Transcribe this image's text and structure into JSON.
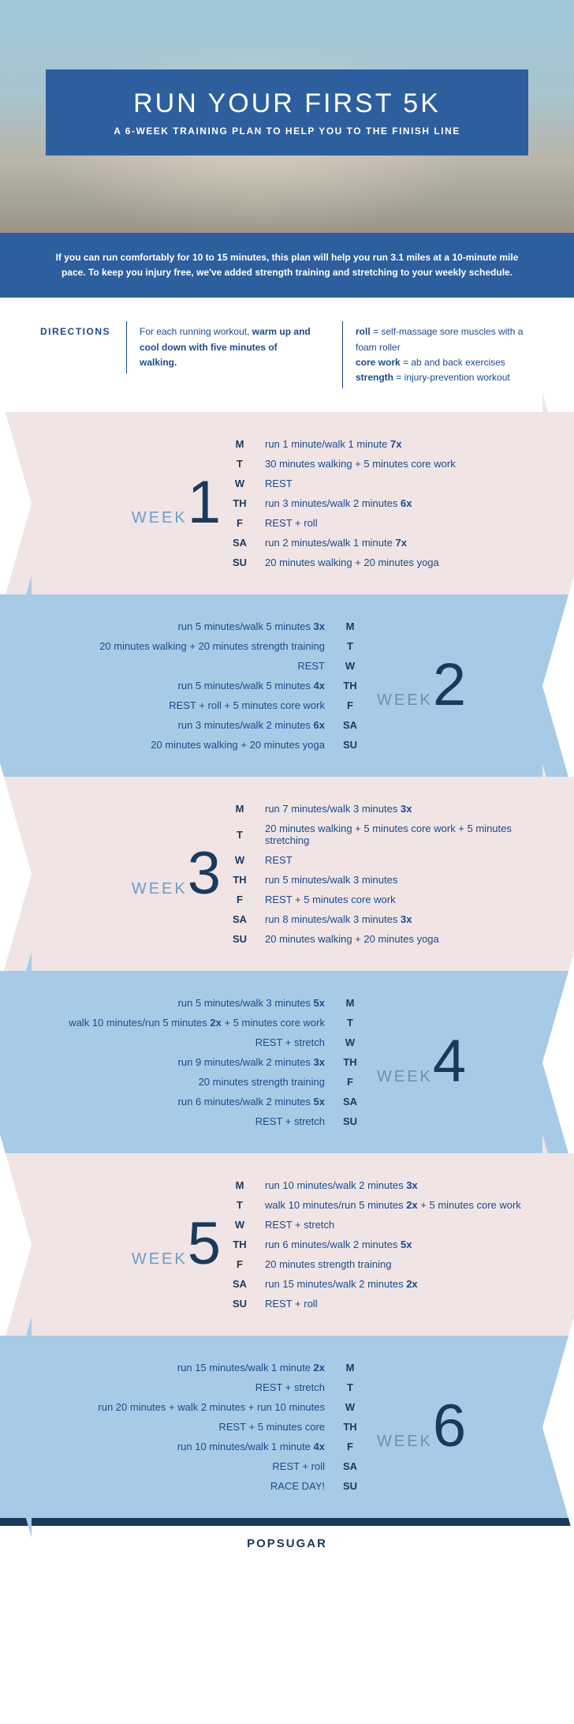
{
  "hero": {
    "title": "RUN YOUR FIRST 5K",
    "subtitle": "A 6-WEEK TRAINING PLAN TO HELP YOU TO THE FINISH LINE"
  },
  "intro": "If you can run comfortably for 10 to 15 minutes, this plan will help you run 3.1 miles at a 10-minute mile pace. To keep you injury free, we've added strength training and stretching to your weekly schedule.",
  "directions": {
    "label": "DIRECTIONS",
    "col1_html": "For each running workout, <b>warm up and cool down with five minutes of walking.</b>",
    "col2_html": "<b>roll</b> = self-massage sore muscles with a foam roller<br><b>core work</b> = ab and back exercises<br><b>strength</b> = injury-prevention workout"
  },
  "weeks": [
    {
      "word": "WEEK",
      "num": "1",
      "days": [
        {
          "d": "M",
          "t": "run 1 minute/walk 1 minute <b>7x</b>"
        },
        {
          "d": "T",
          "t": "30 minutes walking + 5 minutes core work"
        },
        {
          "d": "W",
          "t": "REST"
        },
        {
          "d": "TH",
          "t": "run 3 minutes/walk 2 minutes <b>6x</b>"
        },
        {
          "d": "F",
          "t": "REST + roll"
        },
        {
          "d": "SA",
          "t": "run 2 minutes/walk 1 minute <b>7x</b>"
        },
        {
          "d": "SU",
          "t": "20 minutes walking + 20 minutes yoga"
        }
      ]
    },
    {
      "word": "WEEK",
      "num": "2",
      "days": [
        {
          "d": "M",
          "t": "run 5 minutes/walk 5 minutes <b>3x</b>"
        },
        {
          "d": "T",
          "t": "20 minutes walking + 20 minutes strength training"
        },
        {
          "d": "W",
          "t": "REST"
        },
        {
          "d": "TH",
          "t": "run 5 minutes/walk 5 minutes <b>4x</b>"
        },
        {
          "d": "F",
          "t": "REST + roll + 5 minutes core work"
        },
        {
          "d": "SA",
          "t": "run 3 minutes/walk 2 minutes <b>6x</b>"
        },
        {
          "d": "SU",
          "t": "20 minutes walking + 20 minutes yoga"
        }
      ]
    },
    {
      "word": "WEEK",
      "num": "3",
      "days": [
        {
          "d": "M",
          "t": "run 7 minutes/walk 3 minutes <b>3x</b>"
        },
        {
          "d": "T",
          "t": "20 minutes walking + 5 minutes core work + 5 minutes stretching"
        },
        {
          "d": "W",
          "t": "REST"
        },
        {
          "d": "TH",
          "t": "run 5 minutes/walk 3 minutes"
        },
        {
          "d": "F",
          "t": "REST + 5 minutes core work"
        },
        {
          "d": "SA",
          "t": "run 8 minutes/walk 3 minutes <b>3x</b>"
        },
        {
          "d": "SU",
          "t": "20 minutes walking + 20 minutes yoga"
        }
      ]
    },
    {
      "word": "WEEK",
      "num": "4",
      "days": [
        {
          "d": "M",
          "t": "run 5 minutes/walk 3 minutes <b>5x</b>"
        },
        {
          "d": "T",
          "t": "walk 10 minutes/run 5 minutes <b>2x</b> + 5 minutes core work"
        },
        {
          "d": "W",
          "t": "REST + stretch"
        },
        {
          "d": "TH",
          "t": "run 9 minutes/walk 2 minutes <b>3x</b>"
        },
        {
          "d": "F",
          "t": "20 minutes strength training"
        },
        {
          "d": "SA",
          "t": "run 6 minutes/walk 2 minutes <b>5x</b>"
        },
        {
          "d": "SU",
          "t": "REST + stretch"
        }
      ]
    },
    {
      "word": "WEEK",
      "num": "5",
      "days": [
        {
          "d": "M",
          "t": "run 10 minutes/walk 2 minutes <b>3x</b>"
        },
        {
          "d": "T",
          "t": "walk 10 minutes/run 5 minutes <b>2x</b> + 5 minutes core work"
        },
        {
          "d": "W",
          "t": "REST + stretch"
        },
        {
          "d": "TH",
          "t": "run 6 minutes/walk 2 minutes <b>5x</b>"
        },
        {
          "d": "F",
          "t": "20 minutes strength training"
        },
        {
          "d": "SA",
          "t": "run 15 minutes/walk 2 minutes <b>2x</b>"
        },
        {
          "d": "SU",
          "t": "REST + roll"
        }
      ]
    },
    {
      "word": "WEEK",
      "num": "6",
      "days": [
        {
          "d": "M",
          "t": "run 15 minutes/walk 1 minute <b>2x</b>"
        },
        {
          "d": "T",
          "t": "REST + stretch"
        },
        {
          "d": "W",
          "t": "run 20 minutes + walk 2 minutes + run 10 minutes"
        },
        {
          "d": "TH",
          "t": "REST + 5 minutes core"
        },
        {
          "d": "F",
          "t": "run 10 minutes/walk 1 minute <b>4x</b>"
        },
        {
          "d": "SA",
          "t": "REST + roll"
        },
        {
          "d": "SU",
          "t": "RACE DAY!"
        }
      ]
    }
  ],
  "footer": {
    "brand": "POPSUGAR"
  },
  "colors": {
    "title_bg": "#2d5f9e",
    "odd_bg": "#f0e4e5",
    "even_bg": "#a7cbe6",
    "dark_navy": "#1a3a5c",
    "text_blue": "#1a4b8c"
  }
}
